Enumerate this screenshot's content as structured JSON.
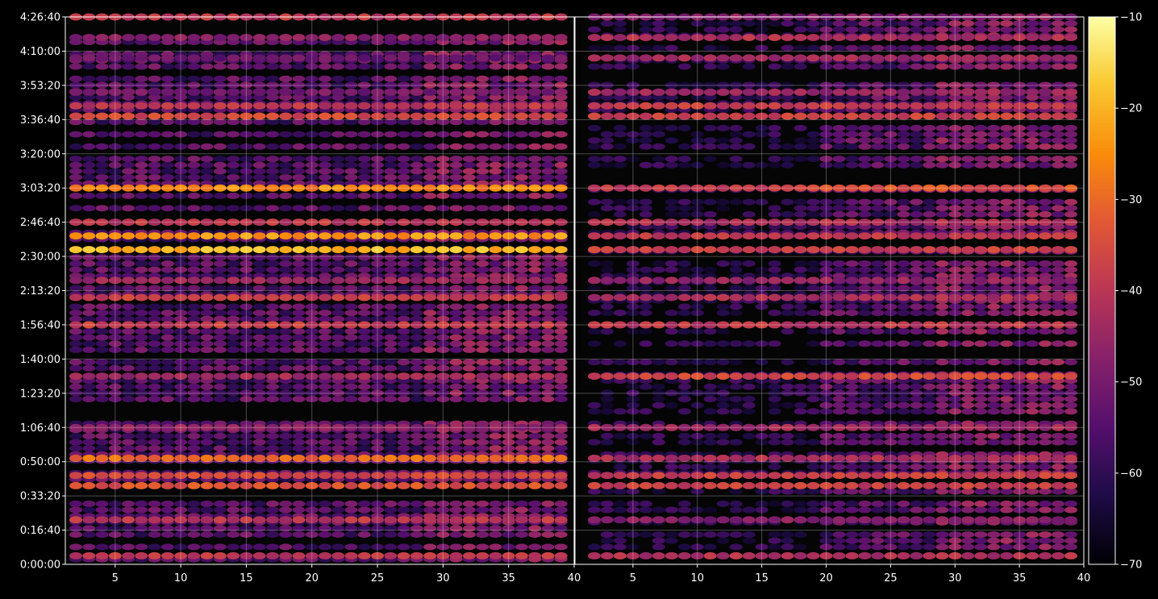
{
  "chart_data": {
    "type": "heatmap",
    "title": "",
    "xlabel": "",
    "ylabel": "",
    "grid": true,
    "background": "#000000",
    "colormap": "inferno",
    "panels": [
      {
        "name": "",
        "xlim": [
          1.2,
          40
        ],
        "x_ticks": [
          5,
          10,
          15,
          20,
          25,
          30,
          35,
          40
        ]
      },
      {
        "name": "",
        "xlim": [
          0.5,
          40
        ],
        "x_ticks": [
          5,
          10,
          15,
          20,
          25,
          30,
          35,
          40
        ]
      }
    ],
    "y_range_seconds": [
      0,
      16000
    ],
    "y_ticks": [
      {
        "value": 0,
        "label": "0:00:00"
      },
      {
        "value": 1000,
        "label": "0:16:40"
      },
      {
        "value": 2000,
        "label": "0:33:20"
      },
      {
        "value": 3000,
        "label": "0:50:00"
      },
      {
        "value": 4000,
        "label": "1:06:40"
      },
      {
        "value": 5000,
        "label": "1:23:20"
      },
      {
        "value": 6000,
        "label": "1:40:00"
      },
      {
        "value": 7000,
        "label": "1:56:40"
      },
      {
        "value": 8000,
        "label": "2:13:20"
      },
      {
        "value": 9000,
        "label": "2:30:00"
      },
      {
        "value": 10000,
        "label": "2:46:40"
      },
      {
        "value": 11000,
        "label": "3:03:20"
      },
      {
        "value": 12000,
        "label": "3:20:00"
      },
      {
        "value": 13000,
        "label": "3:36:40"
      },
      {
        "value": 14000,
        "label": "3:53:20"
      },
      {
        "value": 15000,
        "label": "4:10:00"
      },
      {
        "value": 16000,
        "label": "4:26:40"
      }
    ],
    "colorbar": {
      "min": -70,
      "max": -10,
      "ticks": [
        -70,
        -60,
        -50,
        -40,
        -30,
        -20,
        -10
      ]
    },
    "rows": [
      {
        "t": 16000,
        "left": -40,
        "right": -48
      },
      {
        "t": 15400,
        "left": -48,
        "right": -42
      },
      {
        "t": 14800,
        "left": -52,
        "right": -44
      },
      {
        "t": 13800,
        "left": -50,
        "right": -45
      },
      {
        "t": 13400,
        "left": -40,
        "right": -38
      },
      {
        "t": 13100,
        "left": -36,
        "right": -38
      },
      {
        "t": 11000,
        "left": -26,
        "right": -34
      },
      {
        "t": 10000,
        "left": -40,
        "right": -42
      },
      {
        "t": 9600,
        "left": -24,
        "right": -40
      },
      {
        "t": 9200,
        "left": -20,
        "right": -38
      },
      {
        "t": 8300,
        "left": -45,
        "right": -46
      },
      {
        "t": 7800,
        "left": -38,
        "right": -42
      },
      {
        "t": 7000,
        "left": -38,
        "right": -40
      },
      {
        "t": 5500,
        "left": -44,
        "right": -36
      },
      {
        "t": 4000,
        "left": -46,
        "right": -44
      },
      {
        "t": 3100,
        "left": -30,
        "right": -42
      },
      {
        "t": 2600,
        "left": -36,
        "right": -38
      },
      {
        "t": 2300,
        "left": -34,
        "right": -38
      },
      {
        "t": 1300,
        "left": -40,
        "right": -48
      },
      {
        "t": 250,
        "left": -40,
        "right": -42
      }
    ]
  }
}
